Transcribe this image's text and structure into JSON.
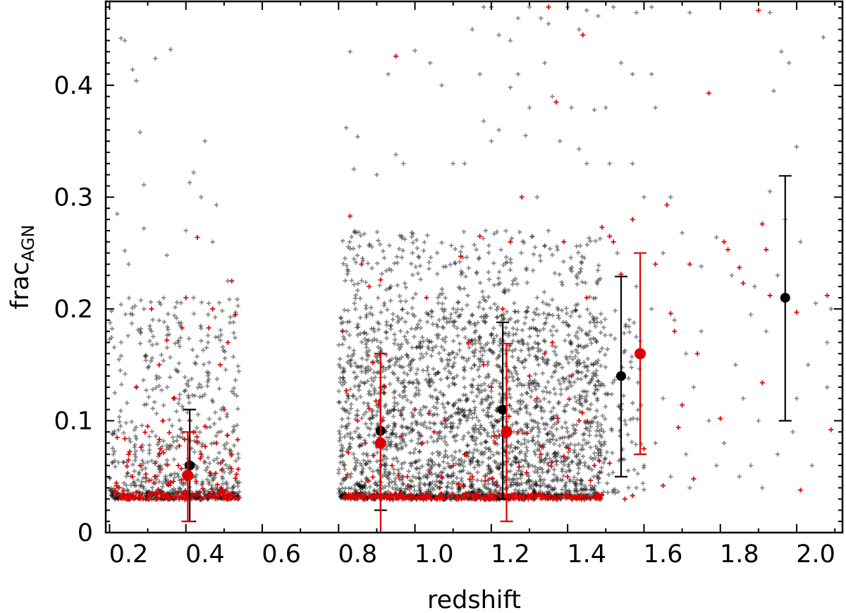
{
  "chart_data": {
    "type": "scatter",
    "title": "",
    "xlabel": "redshift",
    "ylabel": {
      "main": "frac",
      "subscript": "AGN"
    },
    "xlim": [
      0.14,
      2.07
    ],
    "ylim": [
      0,
      0.475
    ],
    "x_ticks": [
      0.2,
      0.4,
      0.6,
      0.8,
      1.0,
      1.2,
      1.4,
      1.6,
      1.8,
      2.0
    ],
    "x_tick_labels": [
      "0.2",
      "0.4",
      "0.6",
      "0.8",
      "1.0",
      "1.2",
      "1.4",
      "1.6",
      "1.8",
      "2.0"
    ],
    "y_ticks": [
      0,
      0.1,
      0.2,
      0.3,
      0.4
    ],
    "y_tick_labels": [
      "0",
      "0.1",
      "0.2",
      "0.3",
      "0.4"
    ],
    "grid": false,
    "colors": {
      "black": "#000000",
      "red": "#e00000",
      "gray": "#555555"
    },
    "scatter_series": [
      {
        "color": "black",
        "points": [
          [
            0.18,
            0.442
          ],
          [
            0.19,
            0.44
          ],
          [
            0.21,
            0.414
          ],
          [
            0.22,
            0.404
          ],
          [
            0.23,
            0.358
          ],
          [
            0.24,
            0.311
          ],
          [
            0.27,
            0.424
          ],
          [
            0.31,
            0.432
          ],
          [
            0.4,
            0.35
          ],
          [
            0.37,
            0.322
          ],
          [
            0.36,
            0.313
          ],
          [
            0.43,
            0.293
          ],
          [
            0.39,
            0.3
          ],
          [
            0.17,
            0.285
          ],
          [
            0.19,
            0.252
          ],
          [
            0.2,
            0.24
          ],
          [
            0.24,
            0.272
          ],
          [
            0.3,
            0.248
          ],
          [
            0.35,
            0.27
          ],
          [
            0.42,
            0.26
          ],
          [
            0.18,
            0.204
          ],
          [
            0.21,
            0.195
          ],
          [
            0.24,
            0.2
          ],
          [
            0.28,
            0.206
          ],
          [
            0.32,
            0.194
          ],
          [
            0.37,
            0.21
          ],
          [
            0.41,
            0.205
          ],
          [
            0.46,
            0.225
          ],
          [
            0.48,
            0.197
          ],
          [
            0.26,
            0.18
          ],
          [
            0.33,
            0.17
          ],
          [
            0.44,
            0.172
          ],
          [
            0.78,
            0.43
          ],
          [
            0.77,
            0.362
          ],
          [
            0.79,
            0.325
          ],
          [
            0.8,
            0.354
          ],
          [
            0.85,
            0.32
          ],
          [
            0.88,
            0.41
          ],
          [
            0.9,
            0.338
          ],
          [
            0.92,
            0.33
          ],
          [
            0.95,
            0.431
          ],
          [
            0.99,
            0.42
          ],
          [
            1.02,
            0.4
          ],
          [
            1.05,
            0.33
          ],
          [
            1.08,
            0.33
          ],
          [
            1.12,
            0.41
          ],
          [
            1.13,
            0.368
          ],
          [
            1.15,
            0.35
          ],
          [
            1.17,
            0.36
          ],
          [
            1.2,
            0.398
          ],
          [
            1.22,
            0.41
          ],
          [
            1.24,
            0.355
          ],
          [
            1.25,
            0.38
          ],
          [
            1.27,
            0.3
          ],
          [
            1.29,
            0.42
          ],
          [
            1.31,
            0.39
          ],
          [
            1.33,
            0.35
          ],
          [
            1.36,
            0.38
          ],
          [
            1.38,
            0.343
          ],
          [
            1.4,
            0.33
          ],
          [
            1.42,
            0.378
          ],
          [
            1.45,
            0.38
          ],
          [
            1.46,
            0.33
          ],
          [
            1.1,
            0.45
          ],
          [
            1.13,
            0.47
          ],
          [
            1.15,
            0.47
          ],
          [
            1.17,
            0.445
          ],
          [
            1.2,
            0.44
          ],
          [
            1.22,
            0.46
          ],
          [
            1.25,
            0.47
          ],
          [
            1.28,
            0.46
          ],
          [
            1.3,
            0.455
          ],
          [
            1.35,
            0.47
          ],
          [
            1.38,
            0.45
          ],
          [
            1.4,
            0.467
          ],
          [
            1.43,
            0.462
          ],
          [
            1.47,
            0.47
          ],
          [
            1.53,
            0.465
          ],
          [
            1.57,
            0.47
          ],
          [
            1.67,
            0.465
          ],
          [
            1.49,
            0.42
          ],
          [
            1.52,
            0.41
          ],
          [
            1.57,
            0.41
          ],
          [
            1.88,
            0.465
          ],
          [
            1.91,
            0.43
          ],
          [
            1.93,
            0.42
          ],
          [
            1.89,
            0.395
          ],
          [
            2.02,
            0.443
          ],
          [
            1.52,
            0.33
          ],
          [
            1.55,
            0.3
          ],
          [
            1.58,
            0.38
          ],
          [
            1.62,
            0.3
          ],
          [
            1.65,
            0.268
          ],
          [
            1.6,
            0.25
          ],
          [
            1.7,
            0.238
          ],
          [
            1.74,
            0.264
          ],
          [
            1.78,
            0.23
          ],
          [
            1.84,
            0.22
          ],
          [
            1.88,
            0.305
          ],
          [
            1.92,
            0.28
          ],
          [
            1.95,
            0.345
          ],
          [
            1.96,
            0.26
          ],
          [
            2.0,
            0.205
          ],
          [
            2.04,
            0.2
          ],
          [
            1.98,
            0.15
          ],
          [
            2.03,
            0.13
          ],
          [
            1.95,
            0.12
          ],
          [
            1.85,
            0.1
          ],
          [
            1.48,
            0.25
          ],
          [
            1.53,
            0.22
          ],
          [
            1.57,
            0.2
          ],
          [
            1.63,
            0.19
          ],
          [
            1.66,
            0.16
          ],
          [
            1.68,
            0.13
          ],
          [
            1.72,
            0.1
          ],
          [
            1.76,
            0.08
          ],
          [
            1.8,
            0.05
          ],
          [
            1.83,
            0.06
          ],
          [
            1.86,
            0.04
          ],
          [
            1.9,
            0.07
          ],
          [
            1.94,
            0.09
          ],
          [
            1.62,
            0.05
          ],
          [
            1.66,
            0.07
          ],
          [
            1.55,
            0.06
          ],
          [
            1.5,
            0.1
          ],
          [
            1.6,
            0.12
          ],
          [
            1.7,
            0.18
          ],
          [
            1.79,
            0.15
          ],
          [
            1.83,
            0.195
          ],
          [
            1.87,
            0.18
          ],
          [
            1.9,
            0.23
          ],
          [
            1.74,
            0.06
          ],
          [
            1.67,
            0.04
          ],
          [
            1.58,
            0.08
          ],
          [
            1.53,
            0.04
          ],
          [
            1.99,
            0.06
          ],
          [
            2.03,
            0.17
          ],
          [
            1.81,
            0.12
          ]
        ],
        "random_clouds": [
          {
            "count": 450,
            "x": [
              0.15,
              0.49
            ],
            "y": [
              0.035,
              0.16
            ],
            "bias": 2.2,
            "seed": 11
          },
          {
            "count": 80,
            "x": [
              0.15,
              0.49
            ],
            "y": [
              0.16,
              0.21
            ],
            "bias": 1.0,
            "seed": 12
          },
          {
            "count": 2100,
            "x": [
              0.75,
              1.44
            ],
            "y": [
              0.035,
              0.2
            ],
            "bias": 1.4,
            "seed": 21
          },
          {
            "count": 260,
            "x": [
              0.76,
              1.44
            ],
            "y": [
              0.2,
              0.27
            ],
            "bias": 1.0,
            "seed": 22
          },
          {
            "count": 90,
            "x": [
              1.44,
              1.55
            ],
            "y": [
              0.035,
              0.2
            ],
            "bias": 1.5,
            "seed": 23
          }
        ],
        "floor_band": {
          "count": 700,
          "y": 0.032,
          "segments": [
            [
              0.15,
              0.49
            ],
            [
              0.75,
              1.44
            ]
          ],
          "seed": 31
        }
      },
      {
        "color": "red",
        "points": [
          [
            0.35,
            0.21
          ],
          [
            0.26,
            0.2
          ],
          [
            0.34,
            0.183
          ],
          [
            0.3,
            0.172
          ],
          [
            0.28,
            0.15
          ],
          [
            0.38,
            0.264
          ],
          [
            0.42,
            0.2
          ],
          [
            0.41,
            0.183
          ],
          [
            0.47,
            0.225
          ],
          [
            0.46,
            0.17
          ],
          [
            0.44,
            0.15
          ],
          [
            0.48,
            0.195
          ],
          [
            0.22,
            0.13
          ],
          [
            0.17,
            0.085
          ],
          [
            0.19,
            0.084
          ],
          [
            0.2,
            0.07
          ],
          [
            0.25,
            0.095
          ],
          [
            0.23,
            0.06
          ],
          [
            0.29,
            0.1
          ],
          [
            0.32,
            0.12
          ],
          [
            0.37,
            0.09
          ],
          [
            0.4,
            0.095
          ],
          [
            0.43,
            0.08
          ],
          [
            0.45,
            0.11
          ],
          [
            0.39,
            0.07
          ],
          [
            0.33,
            0.06
          ],
          [
            0.27,
            0.05
          ],
          [
            0.21,
            0.05
          ],
          [
            0.47,
            0.07
          ],
          [
            0.36,
            0.1
          ],
          [
            0.31,
            0.045
          ],
          [
            0.78,
            0.283
          ],
          [
            0.81,
            0.24
          ],
          [
            0.83,
            0.22
          ],
          [
            0.86,
            0.226
          ],
          [
            0.9,
            0.426
          ],
          [
            0.84,
            0.152
          ],
          [
            0.87,
            0.13
          ],
          [
            0.76,
            0.18
          ],
          [
            0.77,
            0.127
          ],
          [
            0.8,
            0.1
          ],
          [
            0.82,
            0.08
          ],
          [
            0.89,
            0.06
          ],
          [
            0.93,
            0.05
          ],
          [
            0.95,
            0.11
          ],
          [
            0.97,
            0.08
          ],
          [
            1.0,
            0.09
          ],
          [
            1.03,
            0.1
          ],
          [
            1.05,
            0.06
          ],
          [
            1.08,
            0.07
          ],
          [
            1.1,
            0.05
          ],
          [
            1.13,
            0.15
          ],
          [
            1.15,
            0.13
          ],
          [
            1.18,
            0.2
          ],
          [
            1.2,
            0.26
          ],
          [
            1.23,
            0.3
          ],
          [
            1.25,
            0.14
          ],
          [
            1.27,
            0.12
          ],
          [
            1.29,
            0.16
          ],
          [
            1.31,
            0.17
          ],
          [
            1.3,
            0.47
          ],
          [
            1.32,
            0.385
          ],
          [
            1.34,
            0.26
          ],
          [
            1.36,
            0.14
          ],
          [
            1.38,
            0.1
          ],
          [
            1.4,
            0.21
          ],
          [
            1.39,
            0.445
          ],
          [
            1.12,
            0.265
          ],
          [
            1.09,
            0.17
          ],
          [
            1.07,
            0.247
          ],
          [
            0.98,
            0.21
          ],
          [
            1.02,
            0.05
          ],
          [
            1.16,
            0.08
          ],
          [
            1.22,
            0.09
          ],
          [
            1.28,
            0.07
          ],
          [
            1.35,
            0.05
          ],
          [
            1.42,
            0.06
          ],
          [
            1.44,
            0.273
          ],
          [
            1.46,
            0.265
          ],
          [
            1.47,
            0.26
          ],
          [
            1.49,
            0.231
          ],
          [
            1.52,
            0.28
          ],
          [
            1.58,
            0.24
          ],
          [
            1.61,
            0.293
          ],
          [
            1.63,
            0.18
          ],
          [
            1.62,
            0.196
          ],
          [
            1.65,
            0.114
          ],
          [
            1.67,
            0.24
          ],
          [
            1.69,
            0.16
          ],
          [
            1.72,
            0.393
          ],
          [
            1.76,
            0.26
          ],
          [
            1.77,
            0.253
          ],
          [
            1.8,
            0.237
          ],
          [
            1.81,
            0.223
          ],
          [
            1.86,
            0.276
          ],
          [
            1.87,
            0.253
          ],
          [
            1.88,
            0.212
          ],
          [
            1.85,
            0.467
          ],
          [
            1.86,
            0.134
          ],
          [
            1.95,
            0.197
          ],
          [
            1.96,
            0.038
          ],
          [
            2.03,
            0.212
          ],
          [
            2.04,
            0.092
          ],
          [
            1.75,
            0.102
          ],
          [
            1.64,
            0.094
          ],
          [
            1.6,
            0.042
          ],
          [
            1.68,
            0.048
          ],
          [
            1.55,
            0.075
          ],
          [
            1.52,
            0.033
          ],
          [
            1.46,
            0.062
          ],
          [
            1.5,
            0.03
          ]
        ],
        "random_clouds": [
          {
            "count": 60,
            "x": [
              0.16,
              0.49
            ],
            "y": [
              0.035,
              0.09
            ],
            "bias": 2.0,
            "seed": 41
          },
          {
            "count": 40,
            "x": [
              0.76,
              1.44
            ],
            "y": [
              0.04,
              0.12
            ],
            "bias": 1.5,
            "seed": 42
          }
        ],
        "floor_band": {
          "count": 330,
          "y": 0.032,
          "segments": [
            [
              0.16,
              0.49
            ],
            [
              0.76,
              1.44
            ]
          ],
          "seed": 51
        }
      }
    ],
    "binned_series": [
      {
        "color": "black",
        "points": [
          {
            "x": 0.36,
            "y": 0.06,
            "ylow": 0.01,
            "yhigh": 0.11
          },
          {
            "x": 0.86,
            "y": 0.091,
            "ylow": 0.02,
            "yhigh": 0.16
          },
          {
            "x": 1.18,
            "y": 0.11,
            "ylow": 0.03,
            "yhigh": 0.188
          },
          {
            "x": 1.49,
            "y": 0.14,
            "ylow": 0.05,
            "yhigh": 0.229
          },
          {
            "x": 1.92,
            "y": 0.21,
            "ylow": 0.1,
            "yhigh": 0.319
          }
        ]
      },
      {
        "color": "red",
        "points": [
          {
            "x": 0.355,
            "y": 0.051,
            "ylow": 0.01,
            "yhigh": 0.09
          },
          {
            "x": 0.86,
            "y": 0.08,
            "ylow": 0.0,
            "yhigh": 0.16
          },
          {
            "x": 1.19,
            "y": 0.09,
            "ylow": 0.01,
            "yhigh": 0.169
          },
          {
            "x": 1.54,
            "y": 0.16,
            "ylow": 0.07,
            "yhigh": 0.25
          }
        ]
      }
    ]
  }
}
